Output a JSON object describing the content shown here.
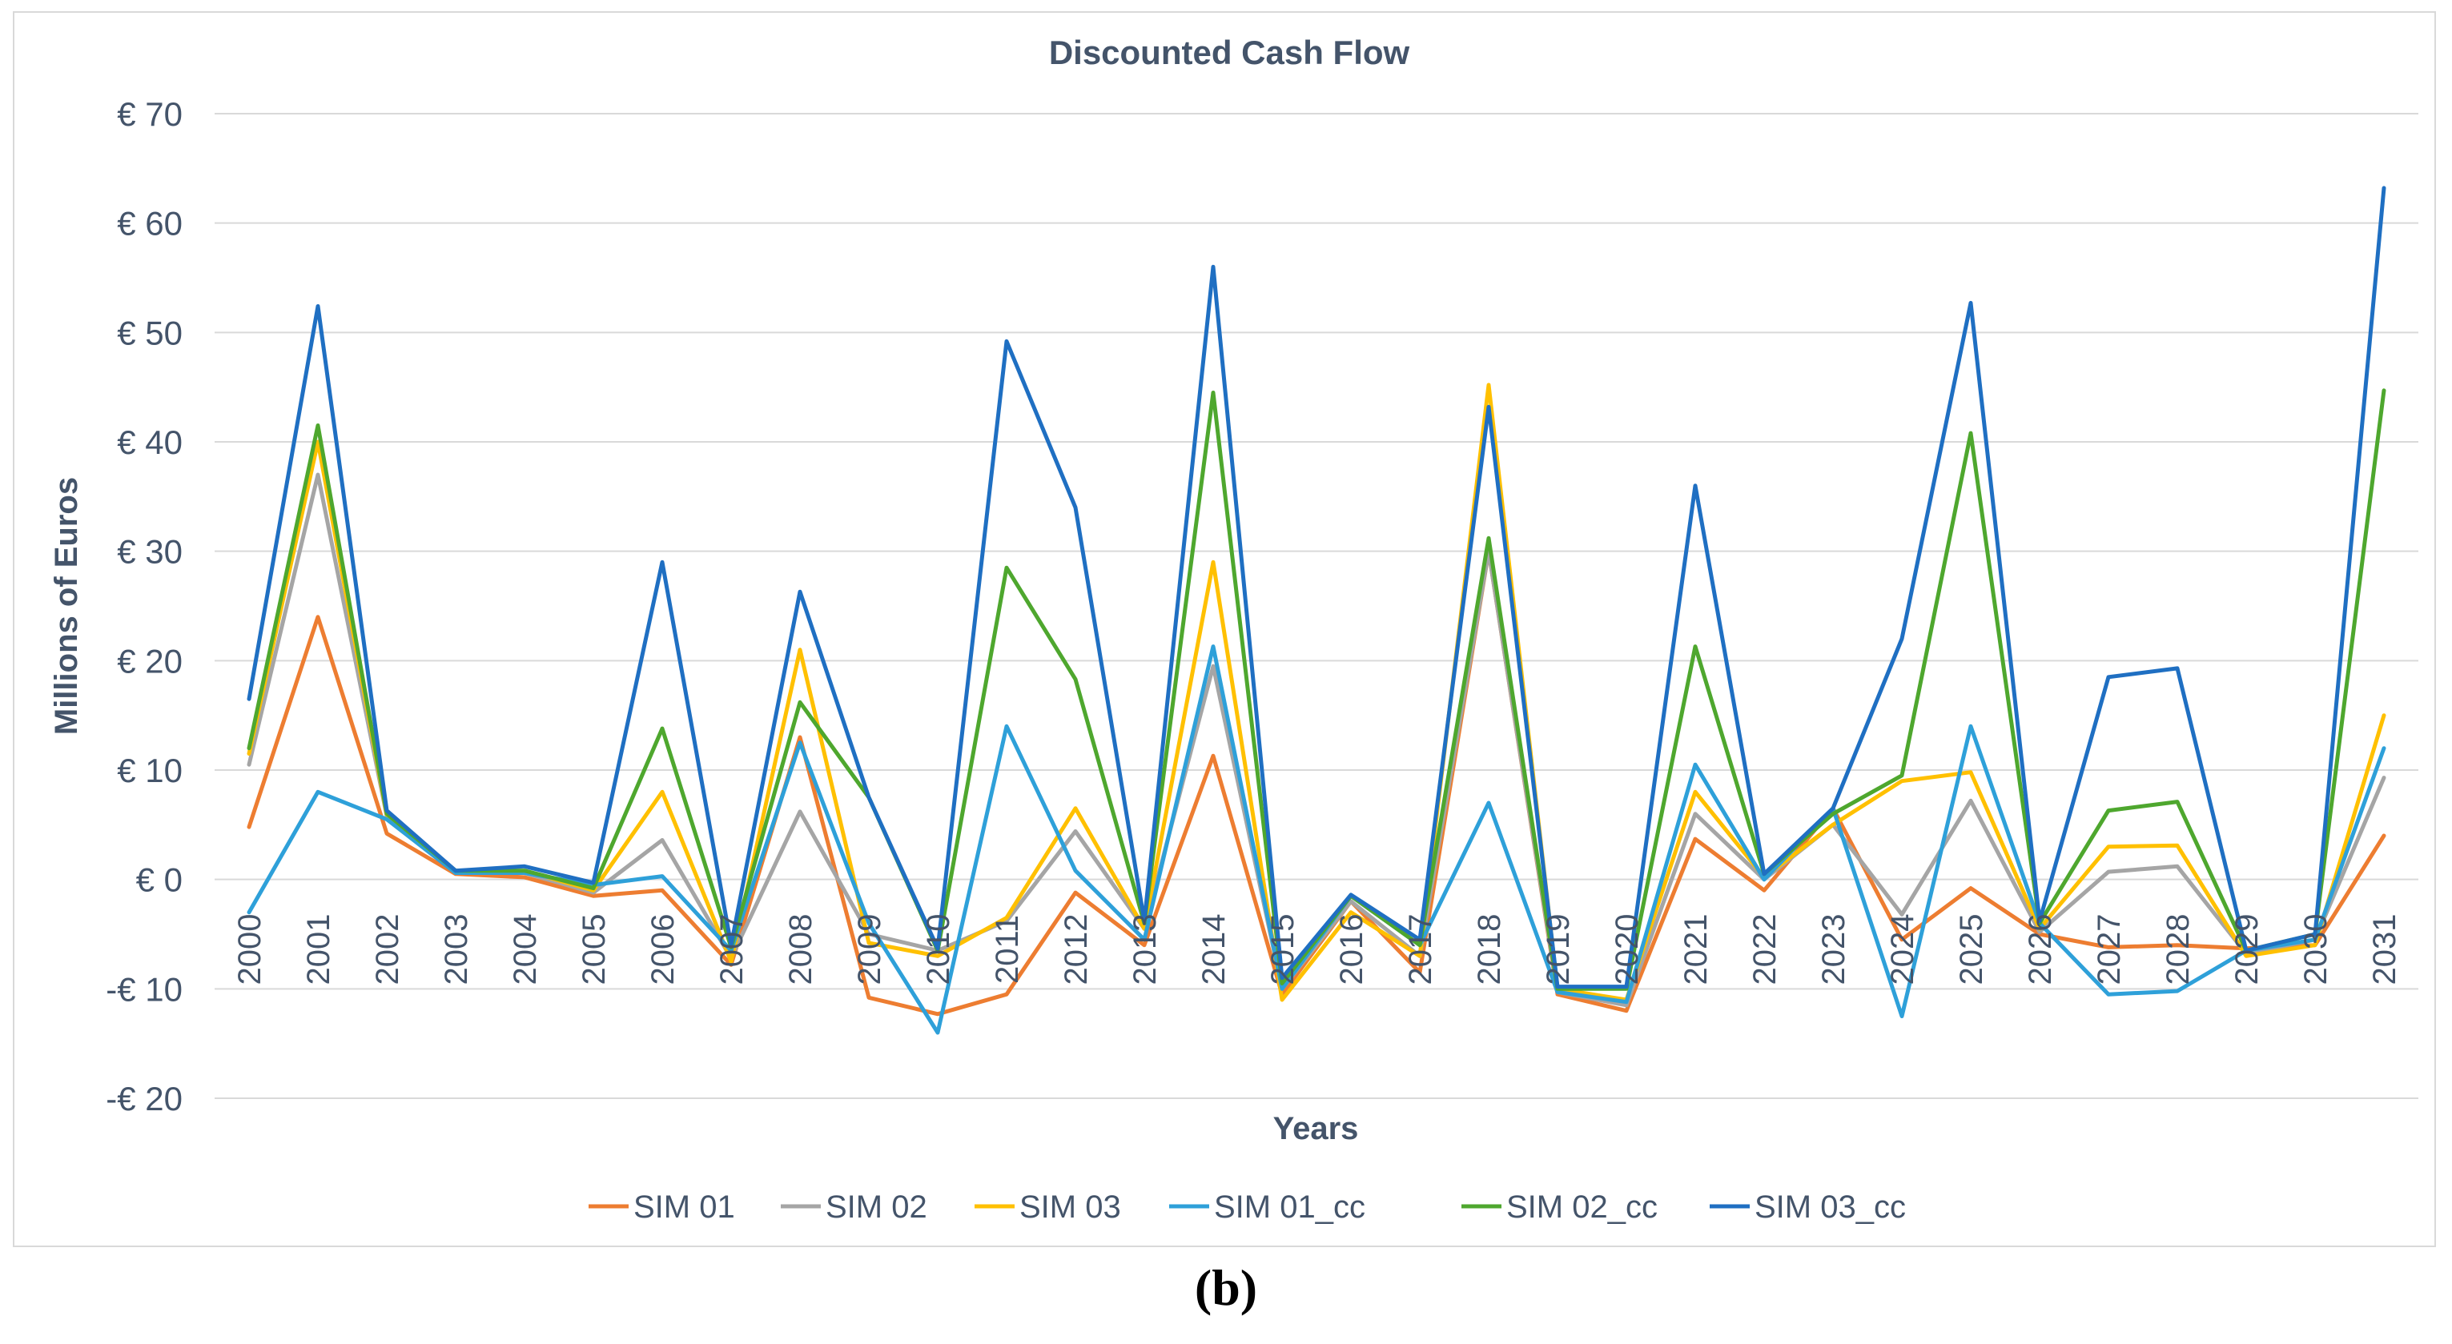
{
  "caption": "(b)",
  "chart_data": {
    "type": "line",
    "title": "Discounted Cash Flow",
    "xlabel": "Years",
    "ylabel": "Millions of Euros",
    "ylim": [
      -20,
      70
    ],
    "yticks": [
      -20,
      -10,
      0,
      10,
      20,
      30,
      40,
      50,
      60,
      70
    ],
    "ytick_labels": [
      "-€ 20",
      "-€ 10",
      "€ 0",
      "€ 10",
      "€ 20",
      "€ 30",
      "€ 40",
      "€ 50",
      "€ 60",
      "€ 70"
    ],
    "grid": "horizontal",
    "legend_position": "bottom",
    "categories": [
      "2000",
      "2001",
      "2002",
      "2003",
      "2004",
      "2005",
      "2006",
      "2007",
      "2008",
      "2009",
      "2010",
      "2011",
      "2012",
      "2013",
      "2014",
      "2015",
      "2016",
      "2017",
      "2018",
      "2019",
      "2020",
      "2021",
      "2022",
      "2023",
      "2024",
      "2025",
      "2026",
      "2027",
      "2028",
      "2029",
      "2030",
      "2031"
    ],
    "series": [
      {
        "name": "SIM 01",
        "color": "#ED7D31",
        "values": [
          4.8,
          24,
          4.2,
          0.5,
          0.2,
          -1.5,
          -1,
          -7.8,
          13,
          -10.8,
          -12.3,
          -10.5,
          -1.2,
          -6,
          11.3,
          -10.5,
          -2,
          -8.5,
          30,
          -10.5,
          -12,
          3.7,
          -1,
          6.5,
          -5.5,
          -0.8,
          -5,
          -6.2,
          -6,
          -6.3,
          -6,
          4
        ]
      },
      {
        "name": "SIM 02",
        "color": "#A5A5A5",
        "values": [
          10.5,
          37,
          5.8,
          0.7,
          0.6,
          -1.2,
          3.6,
          -7.2,
          6.2,
          -5,
          -6.5,
          -3.8,
          4.4,
          -4.5,
          19.5,
          -10,
          -2,
          -7,
          30,
          -10.3,
          -11.5,
          6,
          0,
          5,
          -3.2,
          7.2,
          -4.8,
          0.7,
          1.2,
          -6.8,
          -5.5,
          9.3
        ]
      },
      {
        "name": "SIM 03",
        "color": "#FFC000",
        "values": [
          11.5,
          40,
          5.9,
          0.7,
          0.8,
          -1,
          8,
          -7.5,
          21,
          -5.8,
          -7,
          -3.5,
          6.5,
          -4.5,
          29,
          -11,
          -3,
          -7,
          45.2,
          -10,
          -11,
          8,
          0.2,
          5,
          9,
          9.8,
          -4.5,
          3,
          3.1,
          -7,
          -6,
          15
        ]
      },
      {
        "name": "SIM 01_cc",
        "color": "#2EA0D9",
        "values": [
          -3,
          8,
          5.5,
          0.6,
          0.6,
          -0.5,
          0.3,
          -6.5,
          12.5,
          -4,
          -14,
          14,
          0.8,
          -5.5,
          21.3,
          -10,
          -1.5,
          -6,
          7,
          -10.3,
          -11.2,
          10.5,
          0,
          6.5,
          -12.5,
          14,
          -4,
          -10.5,
          -10.2,
          -6.5,
          -5.5,
          12
        ]
      },
      {
        "name": "SIM 02_cc",
        "color": "#4EA72E",
        "values": [
          12,
          41.5,
          6,
          0.8,
          0.8,
          -0.8,
          13.8,
          -6.2,
          16.2,
          7.5,
          -6.5,
          28.5,
          18.3,
          -4,
          44.5,
          -9.5,
          -1.5,
          -6,
          31.2,
          -10,
          -10,
          21.3,
          0.5,
          6,
          9.5,
          40.8,
          -4,
          6.3,
          7.1,
          -6.5,
          -5,
          44.7
        ]
      },
      {
        "name": "SIM 03_cc",
        "color": "#1F6FC2",
        "values": [
          16.5,
          52.4,
          6.3,
          0.8,
          1.2,
          -0.3,
          29,
          -6,
          26.3,
          7.5,
          -6.3,
          49.2,
          34,
          -3.8,
          56,
          -9,
          -1.4,
          -5.5,
          43.2,
          -9.8,
          -9.8,
          36,
          0.5,
          6.5,
          22,
          52.7,
          -3.8,
          18.5,
          19.3,
          -6.5,
          -5,
          63.2
        ]
      }
    ]
  }
}
